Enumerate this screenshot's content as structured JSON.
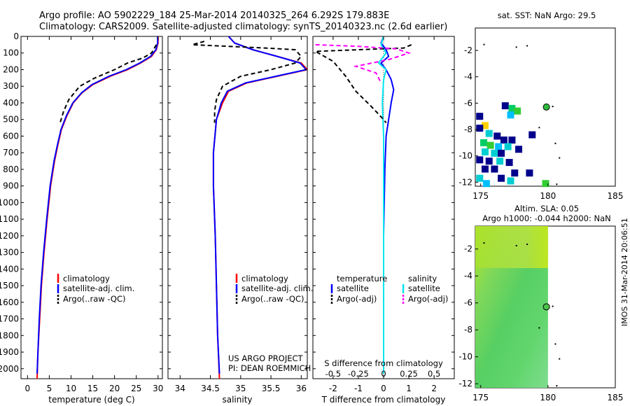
{
  "header": {
    "line1": "Argo profile: AO 5902229_184 25-Mar-2014 20140325_264 6.292S 179.883E",
    "line2": "Climatology: CARS2009. Satellite-adjusted climatology: synTS_20140323.nc (2.6d earlier)"
  },
  "side_label": "IMOS 31-Mar-2014 20:06:51",
  "colors": {
    "climatology": "#ff0000",
    "satellite": "#0000ff",
    "argo": "#000000",
    "sal_sat": "#00e5ee",
    "sal_argo": "#ff00ff"
  },
  "chart_data": [
    {
      "type": "line",
      "id": "temperature",
      "xlabel": "temperature (deg C)",
      "xlim": [
        -1.5,
        31
      ],
      "ylim": [
        2060,
        0
      ],
      "x_ticks": [
        "0",
        "5",
        "10",
        "15",
        "20",
        "25",
        "30"
      ],
      "x_tick_values": [
        0,
        5,
        10,
        15,
        20,
        25,
        30
      ],
      "y_ticks": [
        "0",
        "100",
        "200",
        "300",
        "400",
        "500",
        "600",
        "700",
        "800",
        "900",
        "1000",
        "1100",
        "1200",
        "1300",
        "1400",
        "1500",
        "1600",
        "1700",
        "1800",
        "1900",
        "2000"
      ],
      "y_tick_values": [
        0,
        100,
        200,
        300,
        400,
        500,
        600,
        700,
        800,
        900,
        1000,
        1100,
        1200,
        1300,
        1400,
        1500,
        1600,
        1700,
        1800,
        1900,
        2000
      ],
      "legend": [
        "climatology",
        "satellite-adj. clim.",
        "Argo(..raw -QC)"
      ],
      "series": [
        {
          "name": "climatology",
          "points": [
            [
              30,
              0
            ],
            [
              30,
              40
            ],
            [
              29.6,
              80
            ],
            [
              28.5,
              120
            ],
            [
              26,
              160
            ],
            [
              23,
              200
            ],
            [
              19,
              240
            ],
            [
              15,
              290
            ],
            [
              12.5,
              340
            ],
            [
              10.5,
              400
            ],
            [
              9,
              480
            ],
            [
              7.8,
              560
            ],
            [
              7,
              650
            ],
            [
              6.2,
              750
            ],
            [
              5.3,
              900
            ],
            [
              4.5,
              1100
            ],
            [
              3.8,
              1300
            ],
            [
              3.2,
              1500
            ],
            [
              2.8,
              1700
            ],
            [
              2.4,
              1900
            ],
            [
              2.2,
              2060
            ]
          ]
        },
        {
          "name": "satellite-adj. clim.",
          "points": [
            [
              29.9,
              0
            ],
            [
              29.9,
              40
            ],
            [
              29.5,
              80
            ],
            [
              28.3,
              120
            ],
            [
              25.8,
              160
            ],
            [
              22.7,
              200
            ],
            [
              18.7,
              240
            ],
            [
              14.8,
              290
            ],
            [
              12.4,
              340
            ],
            [
              10.4,
              400
            ],
            [
              8.9,
              480
            ],
            [
              7.7,
              560
            ],
            [
              6.9,
              650
            ],
            [
              6.1,
              750
            ],
            [
              5.2,
              900
            ],
            [
              4.4,
              1100
            ],
            [
              3.7,
              1300
            ],
            [
              3.1,
              1500
            ],
            [
              2.7,
              1700
            ],
            [
              2.4,
              1900
            ],
            [
              2.2,
              2030
            ]
          ]
        },
        {
          "name": "Argo(..raw -QC)",
          "points": [
            [
              29.6,
              50
            ],
            [
              28.5,
              100
            ],
            [
              26.5,
              130
            ],
            [
              23,
              160
            ],
            [
              20,
              200
            ],
            [
              15.5,
              250
            ],
            [
              12,
              300
            ],
            [
              9.5,
              380
            ],
            [
              8.3,
              450
            ],
            [
              7.5,
              520
            ]
          ]
        }
      ]
    },
    {
      "type": "line",
      "id": "salinity",
      "xlabel": "salinity",
      "xlim": [
        33.8,
        36.1
      ],
      "ylim": [
        2060,
        0
      ],
      "x_ticks": [
        "34",
        "34.5",
        "35",
        "35.5",
        "36"
      ],
      "x_tick_values": [
        34,
        34.5,
        35,
        35.5,
        36
      ],
      "legend": [
        "climatology",
        "satellite-adj. clim.",
        "Argo(..raw -QC)"
      ],
      "annotation": [
        "US ARGO PROJECT",
        "PI: DEAN ROEMMICH"
      ],
      "series": [
        {
          "name": "climatology",
          "points": [
            [
              34.8,
              0
            ],
            [
              34.9,
              40
            ],
            [
              35.2,
              80
            ],
            [
              35.6,
              120
            ],
            [
              36.0,
              160
            ],
            [
              36.1,
              200
            ],
            [
              35.6,
              240
            ],
            [
              35.1,
              280
            ],
            [
              34.8,
              330
            ],
            [
              34.7,
              400
            ],
            [
              34.6,
              500
            ],
            [
              34.55,
              700
            ],
            [
              34.55,
              900
            ],
            [
              34.58,
              1200
            ],
            [
              34.6,
              1500
            ],
            [
              34.62,
              1800
            ],
            [
              34.65,
              2060
            ]
          ]
        },
        {
          "name": "satellite-adj. clim.",
          "points": [
            [
              34.8,
              0
            ],
            [
              34.9,
              40
            ],
            [
              35.2,
              80
            ],
            [
              35.6,
              120
            ],
            [
              35.98,
              160
            ],
            [
              36.08,
              200
            ],
            [
              35.58,
              240
            ],
            [
              35.08,
              280
            ],
            [
              34.78,
              330
            ],
            [
              34.68,
              400
            ],
            [
              34.6,
              500
            ],
            [
              34.55,
              700
            ],
            [
              34.55,
              900
            ],
            [
              34.58,
              1200
            ],
            [
              34.6,
              1500
            ],
            [
              34.62,
              1800
            ],
            [
              34.65,
              2030
            ]
          ]
        },
        {
          "name": "Argo(..raw -QC)",
          "points": [
            [
              34.4,
              30
            ],
            [
              34.2,
              50
            ],
            [
              34.8,
              60
            ],
            [
              35.4,
              70
            ],
            [
              35.9,
              80
            ],
            [
              36.0,
              120
            ],
            [
              35.9,
              160
            ],
            [
              35.5,
              200
            ],
            [
              35.0,
              240
            ],
            [
              34.7,
              300
            ],
            [
              34.6,
              380
            ],
            [
              34.57,
              450
            ],
            [
              34.57,
              520
            ]
          ]
        }
      ]
    },
    {
      "type": "line",
      "id": "difference",
      "xlabel_top": "S difference from climatology",
      "xlabel": "T difference from climatology",
      "xlim": [
        -2.8,
        2.8
      ],
      "ylim": [
        2060,
        0
      ],
      "x_ticks": [
        "-2",
        "-1",
        "0",
        "1",
        "2"
      ],
      "x_tick_values": [
        -2,
        -1,
        0,
        1,
        2
      ],
      "top_ticks": [
        "-0.5",
        "-0.25",
        "0",
        "0.25",
        "0.5"
      ],
      "top_tick_values": [
        -0.5,
        -0.25,
        0,
        0.25,
        0.5
      ],
      "legend": [
        "temperature",
        "salinity",
        "satellite",
        "satellite",
        "Argo(-adj)",
        "Argo(-adj)"
      ],
      "series": [
        {
          "name": "temperature satellite",
          "points": [
            [
              0,
              0
            ],
            [
              -0.1,
              40
            ],
            [
              0.1,
              80
            ],
            [
              0.2,
              120
            ],
            [
              -0.1,
              160
            ],
            [
              0.1,
              200
            ],
            [
              0.3,
              260
            ],
            [
              0.4,
              320
            ],
            [
              0.3,
              400
            ],
            [
              0.2,
              500
            ],
            [
              0.1,
              600
            ],
            [
              0.05,
              800
            ],
            [
              0,
              1200
            ],
            [
              0,
              2030
            ]
          ]
        },
        {
          "name": "salinity satellite",
          "points": [
            [
              0,
              0
            ],
            [
              -0.1,
              50
            ],
            [
              0.1,
              100
            ],
            [
              -0.2,
              160
            ],
            [
              0.1,
              200
            ],
            [
              0,
              260
            ],
            [
              -0.05,
              400
            ],
            [
              0,
              600
            ],
            [
              0,
              2030
            ]
          ]
        },
        {
          "name": "temperature Argo(-adj)",
          "points": [
            [
              1.1,
              50
            ],
            [
              0.8,
              70
            ],
            [
              -2.7,
              90
            ],
            [
              -2.0,
              150
            ],
            [
              -1.5,
              240
            ],
            [
              -1.1,
              330
            ],
            [
              -0.5,
              420
            ],
            [
              0,
              500
            ],
            [
              0.1,
              520
            ]
          ]
        },
        {
          "name": "salinity Argo(-adj)",
          "points": [
            [
              -2.7,
              50
            ],
            [
              -1.0,
              60
            ],
            [
              0.5,
              75
            ],
            [
              1.0,
              100
            ],
            [
              0.2,
              140
            ],
            [
              -1.1,
              180
            ],
            [
              -0.3,
              220
            ],
            [
              -0.1,
              280
            ]
          ]
        }
      ]
    },
    {
      "type": "heatmap",
      "id": "sst",
      "title": "sat. SST: NaN Argo: 29.5",
      "xlim": [
        174.6,
        185
      ],
      "ylim": [
        -12.3,
        -0.3
      ],
      "x_ticks": [
        "175",
        "180",
        "185"
      ],
      "x_tick_values": [
        175,
        180,
        185
      ],
      "y_ticks": [
        "-2",
        "-4",
        "-6",
        "-8",
        "-10",
        "-12"
      ],
      "y_tick_values": [
        -2,
        -4,
        -6,
        -8,
        -10,
        -12
      ],
      "argo_position": [
        179.883,
        -6.292
      ],
      "cells": [
        [
          176.8,
          -6.2,
          "#00008b"
        ],
        [
          177.3,
          -6.4,
          "#00cc66"
        ],
        [
          177.7,
          -6.6,
          "#32cd32"
        ],
        [
          177.2,
          -6.9,
          "#00bfff"
        ],
        [
          174.9,
          -7.0,
          "#00008b"
        ],
        [
          175.3,
          -7.7,
          "#ffd000"
        ],
        [
          174.9,
          -7.9,
          "#00008b"
        ],
        [
          175.6,
          -8.3,
          "#00ced1"
        ],
        [
          176.2,
          -8.5,
          "#00008b"
        ],
        [
          176.7,
          -8.8,
          "#00008b"
        ],
        [
          177.3,
          -8.8,
          "#00008b"
        ],
        [
          178.8,
          -8.4,
          "#00008b"
        ],
        [
          175.2,
          -9.0,
          "#00cc66"
        ],
        [
          175.7,
          -9.2,
          "#32cd32"
        ],
        [
          176.3,
          -9.3,
          "#00bfff"
        ],
        [
          177.0,
          -9.3,
          "#00ced1"
        ],
        [
          177.8,
          -9.5,
          "#00008b"
        ],
        [
          175.3,
          -9.7,
          "#00ced1"
        ],
        [
          176.0,
          -9.8,
          "#00ced1"
        ],
        [
          176.5,
          -9.8,
          "#00008b"
        ],
        [
          174.9,
          -10.3,
          "#00008b"
        ],
        [
          175.6,
          -10.4,
          "#00008b"
        ],
        [
          176.4,
          -10.4,
          "#00ced1"
        ],
        [
          177.1,
          -10.5,
          "#00008b"
        ],
        [
          175.3,
          -11.0,
          "#00008b"
        ],
        [
          176.0,
          -11.0,
          "#00008b"
        ],
        [
          177.5,
          -11.3,
          "#00008b"
        ],
        [
          178.6,
          -11.3,
          "#00008b"
        ],
        [
          174.9,
          -11.7,
          "#00ced1"
        ],
        [
          176.5,
          -11.7,
          "#00008b"
        ],
        [
          177.2,
          -11.9,
          "#00ced1"
        ],
        [
          179.8,
          -12.1,
          "#32cd32"
        ],
        [
          175.4,
          -12.1,
          "#00bfff"
        ]
      ]
    },
    {
      "type": "heatmap",
      "id": "sla",
      "title_lines": [
        "Altim. SLA: 0.05",
        "Argo h1000: -0.044 h2000: NaN"
      ],
      "xlim": [
        174.6,
        185
      ],
      "ylim": [
        -12.3,
        -0.3
      ],
      "x_ticks": [
        "175",
        "180",
        "185"
      ],
      "x_tick_values": [
        175,
        180,
        185
      ],
      "y_ticks": [
        "-2",
        "-4",
        "-6",
        "-8",
        "-10",
        "-12"
      ],
      "y_tick_values": [
        -2,
        -4,
        -6,
        -8,
        -10,
        -12
      ],
      "argo_position": [
        179.883,
        -6.292
      ],
      "field_extent": [
        174.6,
        180.0
      ]
    }
  ]
}
